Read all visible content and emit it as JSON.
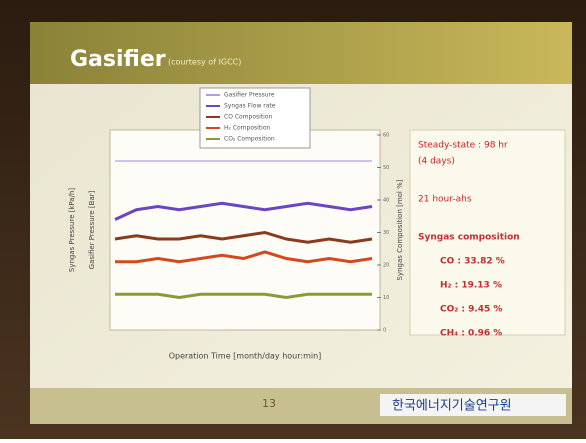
{
  "slide": {
    "title": "Gasifier",
    "subtitle": "(courtesy of IGCC)",
    "page_number": "13",
    "logo": "한국에너지기술연구원"
  },
  "info_box": {
    "lines": [
      "Steady-state : 98 hr",
      "(4 days)",
      "21 hour-ahs",
      "Syngas composition",
      "CO : 33.82 %",
      "H₂ : 19.13 %",
      "CO₂ : 9.45 %",
      "CH₄ : 0.96 %"
    ]
  },
  "chart_data": {
    "type": "line",
    "x_label": "Operation Time [month/day hour:min]",
    "y_label_left_outer": "Syngas Pressure [kPa/h]",
    "y_label_left_inner": "Gasifier Pressure [Bar]",
    "y_label": "Syngas Composition [mol %]",
    "categories": [
      null,
      null,
      null,
      null,
      null,
      null,
      null,
      null,
      null,
      null,
      null,
      null,
      null
    ],
    "ylim": [
      0,
      60
    ],
    "yticks": [
      0,
      10,
      20,
      30,
      40,
      50,
      60
    ],
    "series": [
      {
        "name": "Gasifier Pressure",
        "color": "#b79be6",
        "values": [
          52,
          52,
          52,
          52,
          52,
          52,
          52,
          52,
          52,
          52,
          52,
          52,
          52
        ]
      },
      {
        "name": "Syngas Flow rate",
        "color": "#6a45c4",
        "values": [
          34,
          37,
          38,
          37,
          38,
          39,
          38,
          37,
          38,
          39,
          38,
          37,
          38
        ]
      },
      {
        "name": "CO Composition",
        "color": "#8b3a1e",
        "values": [
          28,
          29,
          28,
          28,
          29,
          28,
          29,
          30,
          28,
          27,
          28,
          27,
          28
        ]
      },
      {
        "name": "H₂ Composition",
        "color": "#d2491e",
        "values": [
          21,
          21,
          22,
          21,
          22,
          23,
          22,
          24,
          22,
          21,
          22,
          21,
          22
        ]
      },
      {
        "name": "CO₂ Composition",
        "color": "#8a9a3a",
        "values": [
          11,
          11,
          11,
          10,
          11,
          11,
          11,
          11,
          10,
          11,
          11,
          11,
          11
        ]
      }
    ]
  }
}
